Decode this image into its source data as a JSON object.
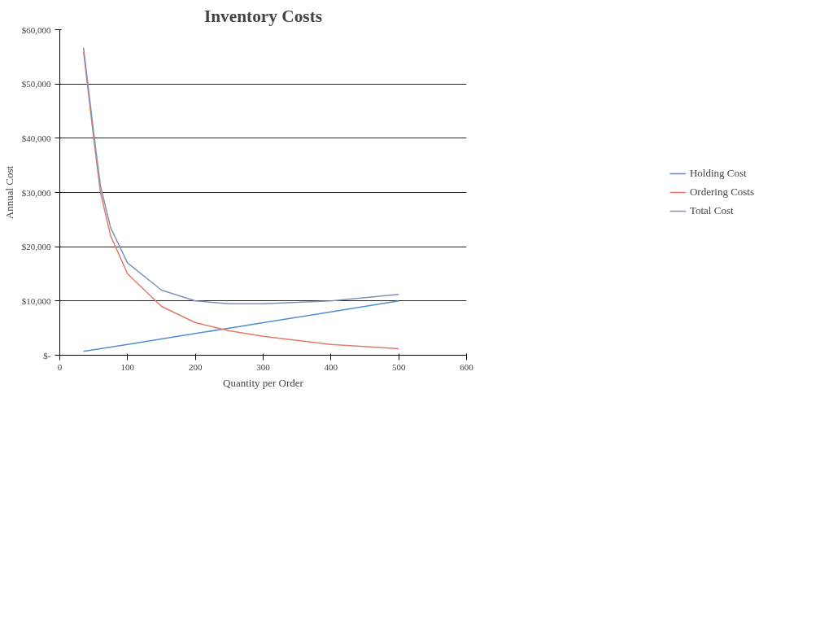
{
  "chart_data": {
    "type": "line",
    "title": "Inventory Costs",
    "xlabel": "Quantity per Order",
    "ylabel": "Annual Cost",
    "x": [
      35,
      50,
      60,
      75,
      100,
      150,
      200,
      250,
      300,
      400,
      500
    ],
    "series": [
      {
        "name": "Holding Cost",
        "color": "#4f8fcf",
        "values": [
          700,
          1000,
          1200,
          1500,
          2000,
          3000,
          4000,
          5000,
          6000,
          8000,
          10000
        ]
      },
      {
        "name": "Ordering Costs",
        "color": "#e07a68",
        "values": [
          56000,
          40000,
          30000,
          22000,
          15000,
          9000,
          6000,
          4500,
          3500,
          2000,
          1200
        ]
      },
      {
        "name": "Total Cost",
        "color": "#7f92b8",
        "values": [
          56700,
          41000,
          31200,
          23500,
          17000,
          12000,
          10000,
          9500,
          9500,
          10000,
          11200
        ]
      }
    ],
    "xlim": [
      0,
      600
    ],
    "xticks": [
      0,
      100,
      200,
      300,
      400,
      500,
      600
    ],
    "ylim": [
      0,
      60000
    ],
    "yticks": [
      {
        "value": 0,
        "label": "$-"
      },
      {
        "value": 10000,
        "label": "$10,000"
      },
      {
        "value": 20000,
        "label": "$20,000"
      },
      {
        "value": 30000,
        "label": "$30,000"
      },
      {
        "value": 40000,
        "label": "$40,000"
      },
      {
        "value": 50000,
        "label": "$50,000"
      },
      {
        "value": 60000,
        "label": "$60,000"
      }
    ],
    "grid": "y",
    "legend": "right",
    "marker": "none"
  }
}
